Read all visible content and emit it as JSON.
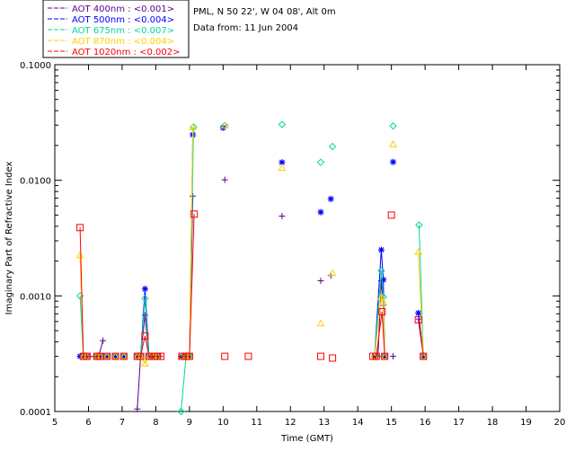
{
  "header": {
    "location": "PML, N 50 22', W 04 08', Alt 0m",
    "date": "Data from: 11 Jun 2004"
  },
  "chart_data": {
    "type": "line",
    "title": "",
    "xlabel": "Time (GMT)",
    "ylabel": "Imaginary Part of Refractive Index",
    "xlim": [
      5,
      20
    ],
    "ylim": [
      0.0001,
      0.1
    ],
    "yscale": "log",
    "x_ticks": [
      "5",
      "6",
      "7",
      "8",
      "9",
      "10",
      "11",
      "12",
      "13",
      "14",
      "15",
      "16",
      "17",
      "18",
      "19",
      "20"
    ],
    "y_ticks": [
      "0.0001",
      "0.0010",
      "0.0100",
      "0.1000"
    ],
    "legend_position": "top-left",
    "series": [
      {
        "name": "AOT  400nm : <0.001>",
        "color": "#5a008c",
        "marker": "plus",
        "segments": [
          [
            [
              5.8,
              0.0003
            ],
            [
              5.92,
              0.0003
            ],
            [
              6.05,
              0.0003
            ],
            [
              6.3,
              0.0003
            ],
            [
              6.43,
              0.00041
            ]
          ],
          [
            [
              7.45,
              0.000105
            ],
            [
              7.55,
              0.0003
            ],
            [
              7.68,
              0.00068
            ],
            [
              7.8,
              0.0003
            ],
            [
              7.95,
              0.0003
            ],
            [
              8.12,
              0.0003
            ]
          ],
          [
            [
              8.8,
              0.0003
            ],
            [
              8.9,
              0.0003
            ],
            [
              9.0,
              0.0003
            ],
            [
              9.1,
              0.0073
            ]
          ],
          [
            [
              14.6,
              0.0003
            ],
            [
              14.7,
              0.00135
            ],
            [
              14.76,
              0.00083
            ],
            [
              14.8,
              0.0003
            ]
          ],
          [
            [
              15.82,
              0.00063
            ],
            [
              15.95,
              0.0003
            ]
          ]
        ],
        "points": [
          [
            6.55,
            0.0003
          ],
          [
            6.8,
            0.0003
          ],
          [
            7.05,
            0.0003
          ],
          [
            10.05,
            0.0101
          ],
          [
            11.75,
            0.0049
          ],
          [
            12.9,
            0.00135
          ],
          [
            13.2,
            0.0015
          ],
          [
            15.05,
            0.0003
          ]
        ]
      },
      {
        "name": "AOT  500nm : <0.004>",
        "color": "#0000ff",
        "marker": "asterisk",
        "segments": [
          [
            [
              5.75,
              0.0003
            ],
            [
              5.85,
              0.0003
            ],
            [
              5.95,
              0.0003
            ],
            [
              6.25,
              0.0003
            ],
            [
              6.35,
              0.0003
            ]
          ],
          [
            [
              7.45,
              0.0003
            ],
            [
              7.55,
              0.0003
            ],
            [
              7.68,
              0.00115
            ],
            [
              7.8,
              0.0003
            ],
            [
              7.95,
              0.0003
            ],
            [
              8.05,
              0.0003
            ]
          ],
          [
            [
              8.75,
              0.0003
            ],
            [
              8.9,
              0.0003
            ],
            [
              9.0,
              0.0003
            ],
            [
              9.1,
              0.0248
            ]
          ],
          [
            [
              14.5,
              0.0003
            ],
            [
              14.7,
              0.0025
            ],
            [
              14.76,
              0.00138
            ],
            [
              14.8,
              0.0003
            ]
          ],
          [
            [
              15.8,
              0.00071
            ],
            [
              15.95,
              0.0003
            ]
          ]
        ],
        "points": [
          [
            6.55,
            0.0003
          ],
          [
            6.8,
            0.0003
          ],
          [
            7.05,
            0.0003
          ],
          [
            10.0,
            0.0285
          ],
          [
            11.75,
            0.0143
          ],
          [
            12.9,
            0.0053
          ],
          [
            13.2,
            0.0069
          ],
          [
            15.05,
            0.0144
          ]
        ]
      },
      {
        "name": "AOT  675nm : <0.007>",
        "color": "#00d8a0",
        "marker": "diamond",
        "segments": [
          [
            [
              5.75,
              0.001
            ],
            [
              5.85,
              0.0003
            ],
            [
              5.95,
              0.0003
            ],
            [
              6.25,
              0.0003
            ],
            [
              6.35,
              0.0003
            ]
          ],
          [
            [
              7.45,
              0.0003
            ],
            [
              7.55,
              0.0003
            ],
            [
              7.68,
              0.00095
            ],
            [
              7.8,
              0.0003
            ],
            [
              7.95,
              0.0003
            ],
            [
              8.05,
              0.0003
            ]
          ],
          [
            [
              8.75,
              0.0001
            ],
            [
              8.9,
              0.0003
            ],
            [
              9.0,
              0.0003
            ],
            [
              9.12,
              0.0289
            ]
          ],
          [
            [
              14.5,
              0.0003
            ],
            [
              14.7,
              0.00165
            ],
            [
              14.76,
              0.00098
            ],
            [
              14.8,
              0.0003
            ]
          ],
          [
            [
              15.82,
              0.0041
            ],
            [
              15.95,
              0.0003
            ]
          ]
        ],
        "points": [
          [
            6.55,
            0.0003
          ],
          [
            6.8,
            0.0003
          ],
          [
            7.05,
            0.0003
          ],
          [
            10.05,
            0.0298
          ],
          [
            11.75,
            0.0304
          ],
          [
            12.9,
            0.0143
          ],
          [
            13.25,
            0.0196
          ],
          [
            15.05,
            0.0295
          ]
        ]
      },
      {
        "name": "AOT  870nm : <0.004>",
        "color": "#ffd000",
        "marker": "triangle",
        "segments": [
          [
            [
              5.75,
              0.00225
            ],
            [
              5.85,
              0.0003
            ],
            [
              5.95,
              0.0003
            ],
            [
              6.25,
              0.0003
            ],
            [
              6.35,
              0.0003
            ]
          ],
          [
            [
              7.45,
              0.0003
            ],
            [
              7.55,
              0.0003
            ],
            [
              7.68,
              0.00026
            ],
            [
              7.8,
              0.0003
            ],
            [
              7.95,
              0.0003
            ],
            [
              8.05,
              0.0003
            ]
          ],
          [
            [
              8.75,
              0.0003
            ],
            [
              8.9,
              0.0003
            ],
            [
              9.0,
              0.0003
            ],
            [
              9.1,
              0.0287
            ]
          ],
          [
            [
              14.5,
              0.0003
            ],
            [
              14.7,
              0.00098
            ],
            [
              14.76,
              0.00088
            ],
            [
              14.8,
              0.0003
            ]
          ],
          [
            [
              15.8,
              0.0024
            ],
            [
              15.95,
              0.0003
            ]
          ]
        ],
        "points": [
          [
            6.55,
            0.0003
          ],
          [
            6.8,
            0.0003
          ],
          [
            7.05,
            0.0003
          ],
          [
            10.05,
            0.0298
          ],
          [
            11.75,
            0.0128
          ],
          [
            12.9,
            0.00058
          ],
          [
            13.25,
            0.00158
          ],
          [
            15.05,
            0.0205
          ]
        ]
      },
      {
        "name": "AOT 1020nm : <0.002>",
        "color": "#ff0000",
        "marker": "square",
        "segments": [
          [
            [
              5.75,
              0.0039
            ],
            [
              5.85,
              0.0003
            ],
            [
              5.95,
              0.0003
            ],
            [
              6.25,
              0.0003
            ],
            [
              6.35,
              0.0003
            ]
          ],
          [
            [
              7.45,
              0.0003
            ],
            [
              7.55,
              0.0003
            ],
            [
              7.68,
              0.00045
            ],
            [
              7.8,
              0.0003
            ],
            [
              7.95,
              0.0003
            ],
            [
              8.05,
              0.0003
            ],
            [
              8.15,
              0.0003
            ]
          ],
          [
            [
              8.78,
              0.0003
            ],
            [
              8.9,
              0.0003
            ],
            [
              9.0,
              0.0003
            ],
            [
              9.14,
              0.0051
            ]
          ],
          [
            [
              14.45,
              0.0003
            ],
            [
              14.55,
              0.0003
            ],
            [
              14.72,
              0.00073
            ],
            [
              14.8,
              0.0003
            ]
          ],
          [
            [
              15.8,
              0.00062
            ],
            [
              15.95,
              0.0003
            ]
          ]
        ],
        "points": [
          [
            6.55,
            0.0003
          ],
          [
            6.8,
            0.0003
          ],
          [
            7.05,
            0.0003
          ],
          [
            10.05,
            0.0003
          ],
          [
            10.75,
            0.0003
          ],
          [
            12.9,
            0.0003
          ],
          [
            13.25,
            0.00029
          ],
          [
            15.0,
            0.005
          ]
        ]
      }
    ]
  }
}
